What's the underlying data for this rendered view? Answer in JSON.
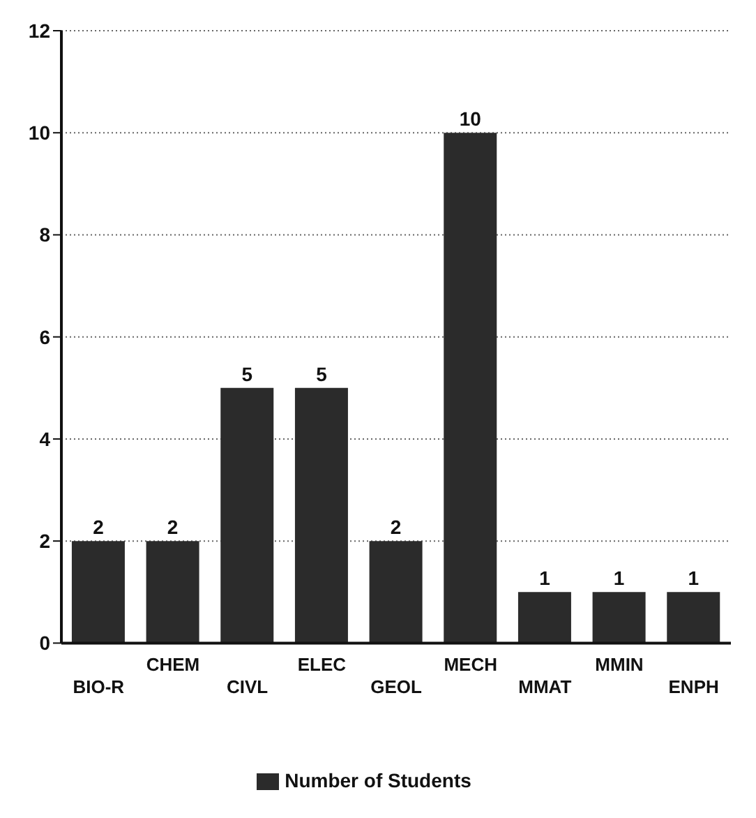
{
  "chart_data": {
    "type": "bar",
    "categories": [
      "BIO-R",
      "CHEM",
      "CIVL",
      "ELEC",
      "GEOL",
      "MECH",
      "MMAT",
      "MMIN",
      "ENPH"
    ],
    "series": [
      {
        "name": "Number of Students",
        "color": "#2b2b2b",
        "values": [
          2,
          2,
          5,
          5,
          2,
          10,
          1,
          1,
          1
        ]
      }
    ],
    "ylim": [
      0,
      12
    ],
    "yticks": [
      0,
      2,
      4,
      6,
      8,
      10,
      12
    ],
    "grid": "y",
    "legend": "bottom",
    "data_labels": true
  }
}
